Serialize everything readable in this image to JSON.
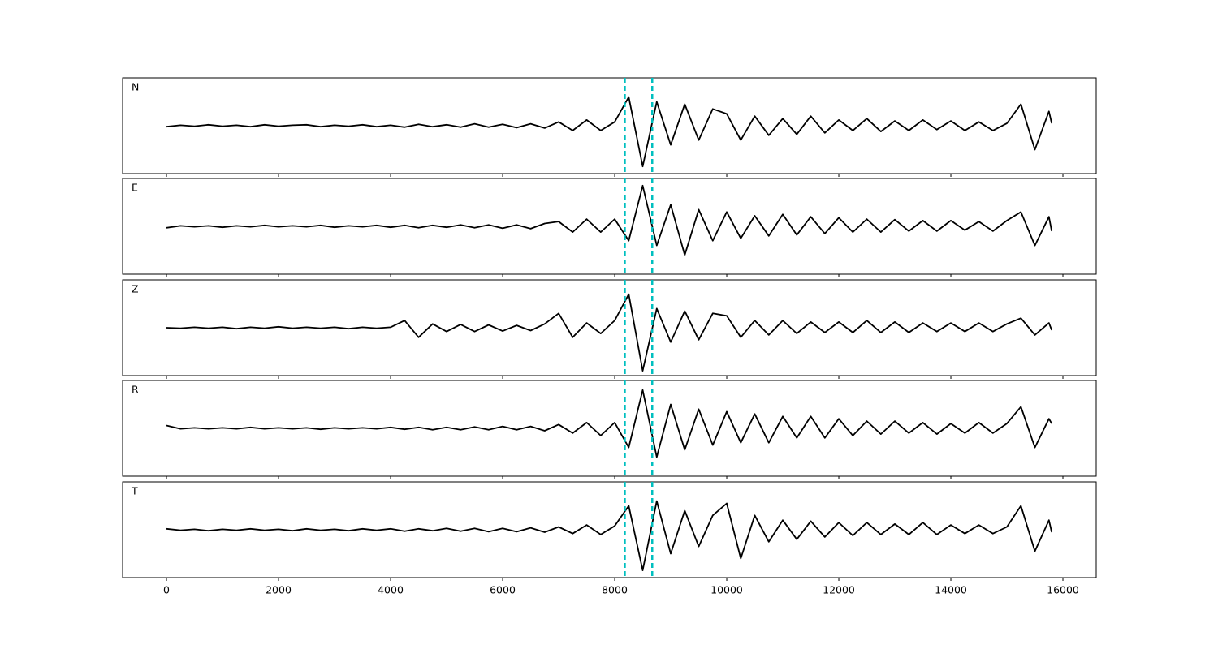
{
  "chart_data": {
    "type": "line",
    "x": [
      0,
      250,
      500,
      750,
      1000,
      1250,
      1500,
      1750,
      2000,
      2250,
      2500,
      2750,
      3000,
      3250,
      3500,
      3750,
      4000,
      4250,
      4500,
      4750,
      5000,
      5250,
      5500,
      5750,
      6000,
      6250,
      6500,
      6750,
      7000,
      7250,
      7500,
      7750,
      8000,
      8250,
      8500,
      8750,
      9000,
      9250,
      9500,
      9750,
      10000,
      10250,
      10500,
      10750,
      11000,
      11250,
      11500,
      11750,
      12000,
      12250,
      12500,
      12750,
      13000,
      13250,
      13500,
      13750,
      14000,
      14250,
      14500,
      14750,
      15000,
      15250,
      15500,
      15750,
      15800
    ],
    "xlim": [
      -783,
      16594
    ],
    "xticks": [
      0,
      2000,
      4000,
      6000,
      8000,
      10000,
      12000,
      14000,
      16000
    ],
    "ylim": [
      -1,
      1
    ],
    "series": [
      {
        "name": "N",
        "color": "#000000",
        "values": [
          -0.02,
          0.01,
          -0.01,
          0.02,
          -0.01,
          0.01,
          -0.02,
          0.02,
          -0.01,
          0.01,
          0.02,
          -0.02,
          0.01,
          -0.01,
          0.02,
          -0.02,
          0.01,
          -0.03,
          0.03,
          -0.02,
          0.02,
          -0.03,
          0.04,
          -0.03,
          0.03,
          -0.04,
          0.04,
          -0.05,
          0.08,
          -0.1,
          0.12,
          -0.1,
          0.08,
          0.6,
          -0.85,
          0.5,
          -0.4,
          0.45,
          -0.3,
          0.35,
          0.25,
          -0.3,
          0.2,
          -0.2,
          0.15,
          -0.18,
          0.2,
          -0.15,
          0.12,
          -0.1,
          0.15,
          -0.12,
          0.1,
          -0.1,
          0.12,
          -0.08,
          0.1,
          -0.1,
          0.08,
          -0.1,
          0.05,
          0.45,
          -0.5,
          0.3,
          0.05
        ]
      },
      {
        "name": "E",
        "color": "#000000",
        "values": [
          -0.03,
          0.01,
          -0.01,
          0.01,
          -0.02,
          0.01,
          -0.01,
          0.02,
          -0.01,
          0.01,
          -0.01,
          0.02,
          -0.02,
          0.01,
          -0.01,
          0.02,
          -0.02,
          0.02,
          -0.03,
          0.02,
          -0.02,
          0.03,
          -0.03,
          0.03,
          -0.04,
          0.03,
          -0.05,
          0.06,
          0.1,
          -0.12,
          0.15,
          -0.12,
          0.15,
          -0.3,
          0.85,
          -0.4,
          0.45,
          -0.6,
          0.35,
          -0.3,
          0.3,
          -0.25,
          0.22,
          -0.2,
          0.25,
          -0.18,
          0.2,
          -0.15,
          0.18,
          -0.12,
          0.15,
          -0.12,
          0.14,
          -0.1,
          0.12,
          -0.1,
          0.12,
          -0.08,
          0.1,
          -0.1,
          0.12,
          0.3,
          -0.4,
          0.2,
          -0.1
        ]
      },
      {
        "name": "Z",
        "color": "#000000",
        "values": [
          0.0,
          -0.01,
          0.01,
          -0.01,
          0.01,
          -0.02,
          0.01,
          -0.01,
          0.02,
          -0.01,
          0.01,
          -0.01,
          0.01,
          -0.02,
          0.01,
          -0.01,
          0.01,
          0.15,
          -0.2,
          0.08,
          -0.08,
          0.07,
          -0.08,
          0.06,
          -0.07,
          0.05,
          -0.06,
          0.08,
          0.3,
          -0.2,
          0.1,
          -0.12,
          0.15,
          0.7,
          -0.9,
          0.4,
          -0.3,
          0.35,
          -0.25,
          0.3,
          0.25,
          -0.2,
          0.15,
          -0.15,
          0.15,
          -0.12,
          0.12,
          -0.1,
          0.12,
          -0.1,
          0.15,
          -0.1,
          0.12,
          -0.1,
          0.1,
          -0.08,
          0.1,
          -0.08,
          0.1,
          -0.08,
          0.08,
          0.2,
          -0.15,
          0.1,
          -0.05
        ]
      },
      {
        "name": "R",
        "color": "#000000",
        "values": [
          0.06,
          -0.01,
          0.01,
          -0.01,
          0.01,
          -0.01,
          0.02,
          -0.01,
          0.01,
          -0.01,
          0.01,
          -0.02,
          0.01,
          -0.01,
          0.01,
          -0.01,
          0.02,
          -0.02,
          0.02,
          -0.03,
          0.02,
          -0.03,
          0.03,
          -0.03,
          0.04,
          -0.03,
          0.04,
          -0.05,
          0.08,
          -0.1,
          0.12,
          -0.15,
          0.12,
          -0.4,
          0.8,
          -0.6,
          0.5,
          -0.45,
          0.4,
          -0.35,
          0.35,
          -0.3,
          0.3,
          -0.3,
          0.25,
          -0.2,
          0.25,
          -0.2,
          0.2,
          -0.15,
          0.15,
          -0.12,
          0.15,
          -0.1,
          0.12,
          -0.12,
          0.1,
          -0.1,
          0.12,
          -0.1,
          0.1,
          0.45,
          -0.4,
          0.2,
          0.1
        ]
      },
      {
        "name": "T",
        "color": "#000000",
        "values": [
          0.02,
          -0.01,
          0.01,
          -0.02,
          0.01,
          -0.01,
          0.02,
          -0.01,
          0.01,
          -0.02,
          0.02,
          -0.01,
          0.01,
          -0.02,
          0.02,
          -0.01,
          0.02,
          -0.03,
          0.02,
          -0.02,
          0.03,
          -0.03,
          0.03,
          -0.04,
          0.03,
          -0.04,
          0.04,
          -0.05,
          0.06,
          -0.08,
          0.1,
          -0.1,
          0.08,
          0.5,
          -0.85,
          0.6,
          -0.5,
          0.4,
          -0.35,
          0.3,
          0.55,
          -0.6,
          0.3,
          -0.25,
          0.2,
          -0.2,
          0.18,
          -0.15,
          0.15,
          -0.12,
          0.15,
          -0.1,
          0.12,
          -0.1,
          0.15,
          -0.1,
          0.1,
          -0.08,
          0.1,
          -0.08,
          0.06,
          0.5,
          -0.45,
          0.2,
          -0.05
        ]
      }
    ],
    "vlines": [
      8180,
      8670
    ],
    "vline_color": "#00bfbf"
  }
}
